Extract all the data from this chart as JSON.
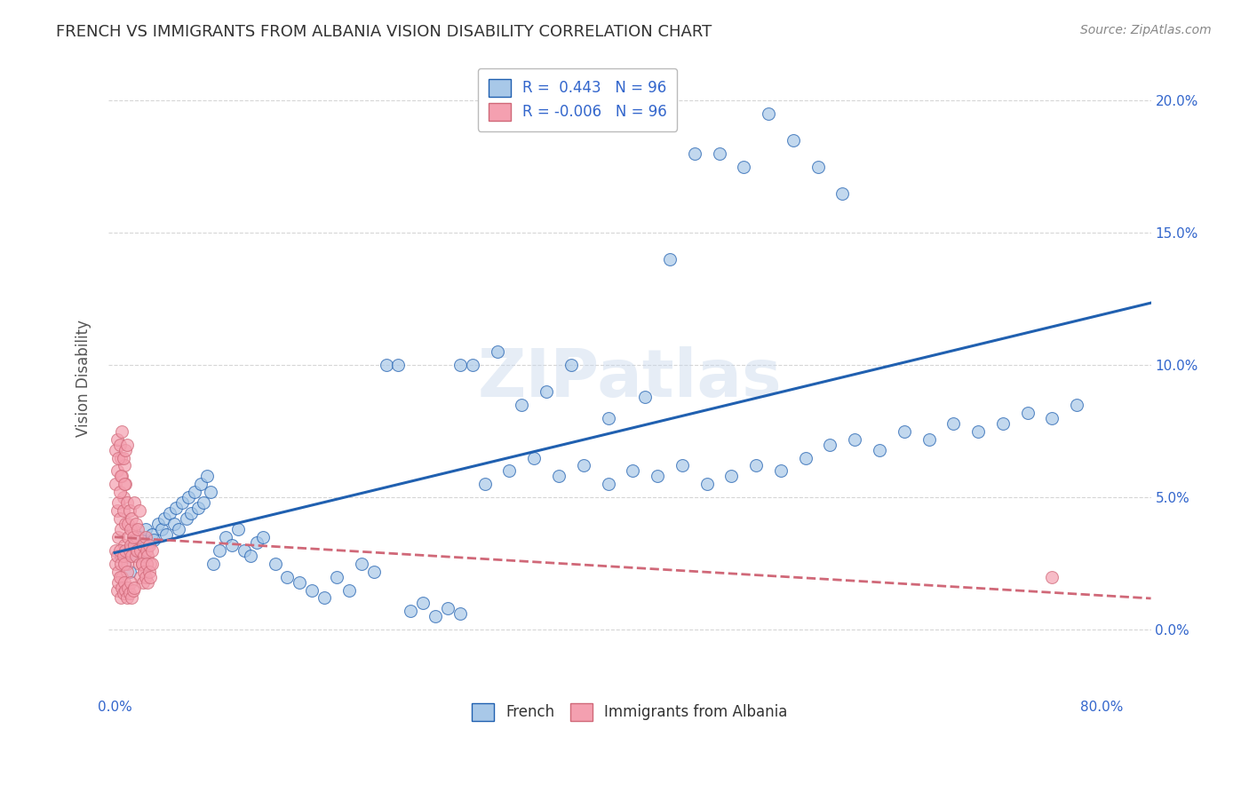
{
  "title": "FRENCH VS IMMIGRANTS FROM ALBANIA VISION DISABILITY CORRELATION CHART",
  "source": "Source: ZipAtlas.com",
  "ylabel": "Vision Disability",
  "xlim": [
    -0.005,
    0.84
  ],
  "ylim": [
    -0.025,
    0.215
  ],
  "xticks": [
    0.0,
    0.8
  ],
  "xtick_labels": [
    "0.0%",
    "80.0%"
  ],
  "yticks": [
    0.0,
    0.05,
    0.1,
    0.15,
    0.2
  ],
  "ytick_labels": [
    "0.0%",
    "5.0%",
    "10.0%",
    "15.0%",
    "20.0%"
  ],
  "french_R": 0.443,
  "french_N": 96,
  "albania_R": -0.006,
  "albania_N": 96,
  "french_color": "#a8c8e8",
  "albania_color": "#f4a0b0",
  "french_line_color": "#2060b0",
  "albania_line_color": "#d06878",
  "watermark": "ZIPatlas",
  "french_x": [
    0.005,
    0.008,
    0.01,
    0.012,
    0.015,
    0.018,
    0.02,
    0.022,
    0.025,
    0.028,
    0.03,
    0.032,
    0.035,
    0.038,
    0.04,
    0.042,
    0.045,
    0.048,
    0.05,
    0.052,
    0.055,
    0.058,
    0.06,
    0.062,
    0.065,
    0.068,
    0.07,
    0.072,
    0.075,
    0.078,
    0.08,
    0.085,
    0.09,
    0.095,
    0.1,
    0.105,
    0.11,
    0.115,
    0.12,
    0.13,
    0.14,
    0.15,
    0.16,
    0.17,
    0.18,
    0.19,
    0.2,
    0.21,
    0.22,
    0.23,
    0.24,
    0.25,
    0.26,
    0.27,
    0.28,
    0.3,
    0.32,
    0.34,
    0.36,
    0.38,
    0.4,
    0.42,
    0.44,
    0.46,
    0.48,
    0.5,
    0.52,
    0.54,
    0.56,
    0.58,
    0.6,
    0.62,
    0.64,
    0.66,
    0.68,
    0.7,
    0.72,
    0.74,
    0.76,
    0.78,
    0.33,
    0.35,
    0.4,
    0.43,
    0.37,
    0.29,
    0.31,
    0.28,
    0.45,
    0.47,
    0.49,
    0.51,
    0.53,
    0.55,
    0.57,
    0.59
  ],
  "french_y": [
    0.028,
    0.025,
    0.03,
    0.022,
    0.032,
    0.028,
    0.035,
    0.03,
    0.038,
    0.033,
    0.036,
    0.034,
    0.04,
    0.038,
    0.042,
    0.036,
    0.044,
    0.04,
    0.046,
    0.038,
    0.048,
    0.042,
    0.05,
    0.044,
    0.052,
    0.046,
    0.055,
    0.048,
    0.058,
    0.052,
    0.025,
    0.03,
    0.035,
    0.032,
    0.038,
    0.03,
    0.028,
    0.033,
    0.035,
    0.025,
    0.02,
    0.018,
    0.015,
    0.012,
    0.02,
    0.015,
    0.025,
    0.022,
    0.1,
    0.1,
    0.007,
    0.01,
    0.005,
    0.008,
    0.006,
    0.055,
    0.06,
    0.065,
    0.058,
    0.062,
    0.055,
    0.06,
    0.058,
    0.062,
    0.055,
    0.058,
    0.062,
    0.06,
    0.065,
    0.07,
    0.072,
    0.068,
    0.075,
    0.072,
    0.078,
    0.075,
    0.078,
    0.082,
    0.08,
    0.085,
    0.085,
    0.09,
    0.08,
    0.088,
    0.1,
    0.1,
    0.105,
    0.1,
    0.14,
    0.18,
    0.18,
    0.175,
    0.195,
    0.185,
    0.175,
    0.165
  ],
  "albania_x": [
    0.001,
    0.002,
    0.003,
    0.004,
    0.005,
    0.006,
    0.007,
    0.008,
    0.009,
    0.01,
    0.001,
    0.002,
    0.003,
    0.004,
    0.005,
    0.006,
    0.007,
    0.008,
    0.009,
    0.01,
    0.001,
    0.002,
    0.003,
    0.004,
    0.005,
    0.006,
    0.007,
    0.008,
    0.009,
    0.01,
    0.001,
    0.002,
    0.003,
    0.004,
    0.005,
    0.006,
    0.007,
    0.008,
    0.009,
    0.01,
    0.011,
    0.012,
    0.013,
    0.014,
    0.015,
    0.016,
    0.017,
    0.018,
    0.019,
    0.02,
    0.011,
    0.012,
    0.013,
    0.014,
    0.015,
    0.016,
    0.017,
    0.018,
    0.019,
    0.02,
    0.021,
    0.022,
    0.023,
    0.024,
    0.025,
    0.026,
    0.027,
    0.028,
    0.029,
    0.03,
    0.021,
    0.022,
    0.023,
    0.024,
    0.025,
    0.026,
    0.027,
    0.028,
    0.029,
    0.03,
    0.002,
    0.003,
    0.004,
    0.005,
    0.006,
    0.007,
    0.008,
    0.009,
    0.01,
    0.011,
    0.012,
    0.013,
    0.014,
    0.015,
    0.016,
    0.76
  ],
  "albania_y": [
    0.03,
    0.045,
    0.035,
    0.042,
    0.038,
    0.028,
    0.05,
    0.032,
    0.04,
    0.025,
    0.055,
    0.06,
    0.048,
    0.052,
    0.065,
    0.058,
    0.045,
    0.062,
    0.055,
    0.048,
    0.068,
    0.072,
    0.065,
    0.07,
    0.058,
    0.075,
    0.065,
    0.055,
    0.068,
    0.07,
    0.025,
    0.028,
    0.022,
    0.03,
    0.025,
    0.02,
    0.028,
    0.025,
    0.03,
    0.022,
    0.035,
    0.03,
    0.032,
    0.028,
    0.038,
    0.032,
    0.028,
    0.035,
    0.03,
    0.025,
    0.04,
    0.045,
    0.038,
    0.042,
    0.035,
    0.048,
    0.04,
    0.03,
    0.038,
    0.045,
    0.03,
    0.025,
    0.032,
    0.028,
    0.035,
    0.03,
    0.028,
    0.032,
    0.025,
    0.03,
    0.02,
    0.025,
    0.018,
    0.022,
    0.02,
    0.025,
    0.018,
    0.022,
    0.02,
    0.025,
    0.015,
    0.018,
    0.02,
    0.012,
    0.016,
    0.014,
    0.018,
    0.015,
    0.012,
    0.016,
    0.014,
    0.018,
    0.012,
    0.015,
    0.016,
    0.02
  ]
}
